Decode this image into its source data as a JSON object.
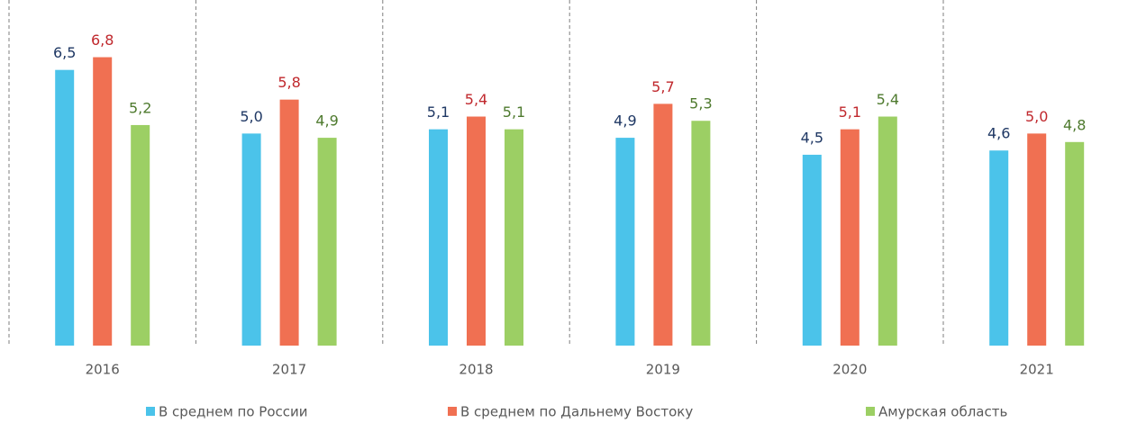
{
  "chart_data": {
    "type": "bar",
    "categories": [
      "2016",
      "2017",
      "2018",
      "2019",
      "2020",
      "2021"
    ],
    "series": [
      {
        "name": "В среднем по России",
        "color": "#4bc3ea",
        "label_color": "#1f3864",
        "values": [
          6.5,
          5.0,
          5.1,
          4.9,
          4.5,
          4.6
        ],
        "value_labels": [
          "6,5",
          "5,0",
          "5,1",
          "4,9",
          "4,5",
          "4,6"
        ]
      },
      {
        "name": "В среднем по Дальнему Востоку",
        "color": "#f07052",
        "label_color": "#c0282d",
        "values": [
          6.8,
          5.8,
          5.4,
          5.7,
          5.1,
          5.0
        ],
        "value_labels": [
          "6,8",
          "5,8",
          "5,4",
          "5,7",
          "5,1",
          "5,0"
        ]
      },
      {
        "name": "Амурская область",
        "color": "#9ccf64",
        "label_color": "#4e7a2e",
        "values": [
          5.2,
          4.9,
          5.1,
          5.3,
          5.4,
          4.8
        ],
        "value_labels": [
          "5,2",
          "4,9",
          "5,1",
          "5,3",
          "5,4",
          "4,8"
        ]
      }
    ],
    "ylim": [
      0,
      8
    ],
    "legend": "bottom"
  }
}
